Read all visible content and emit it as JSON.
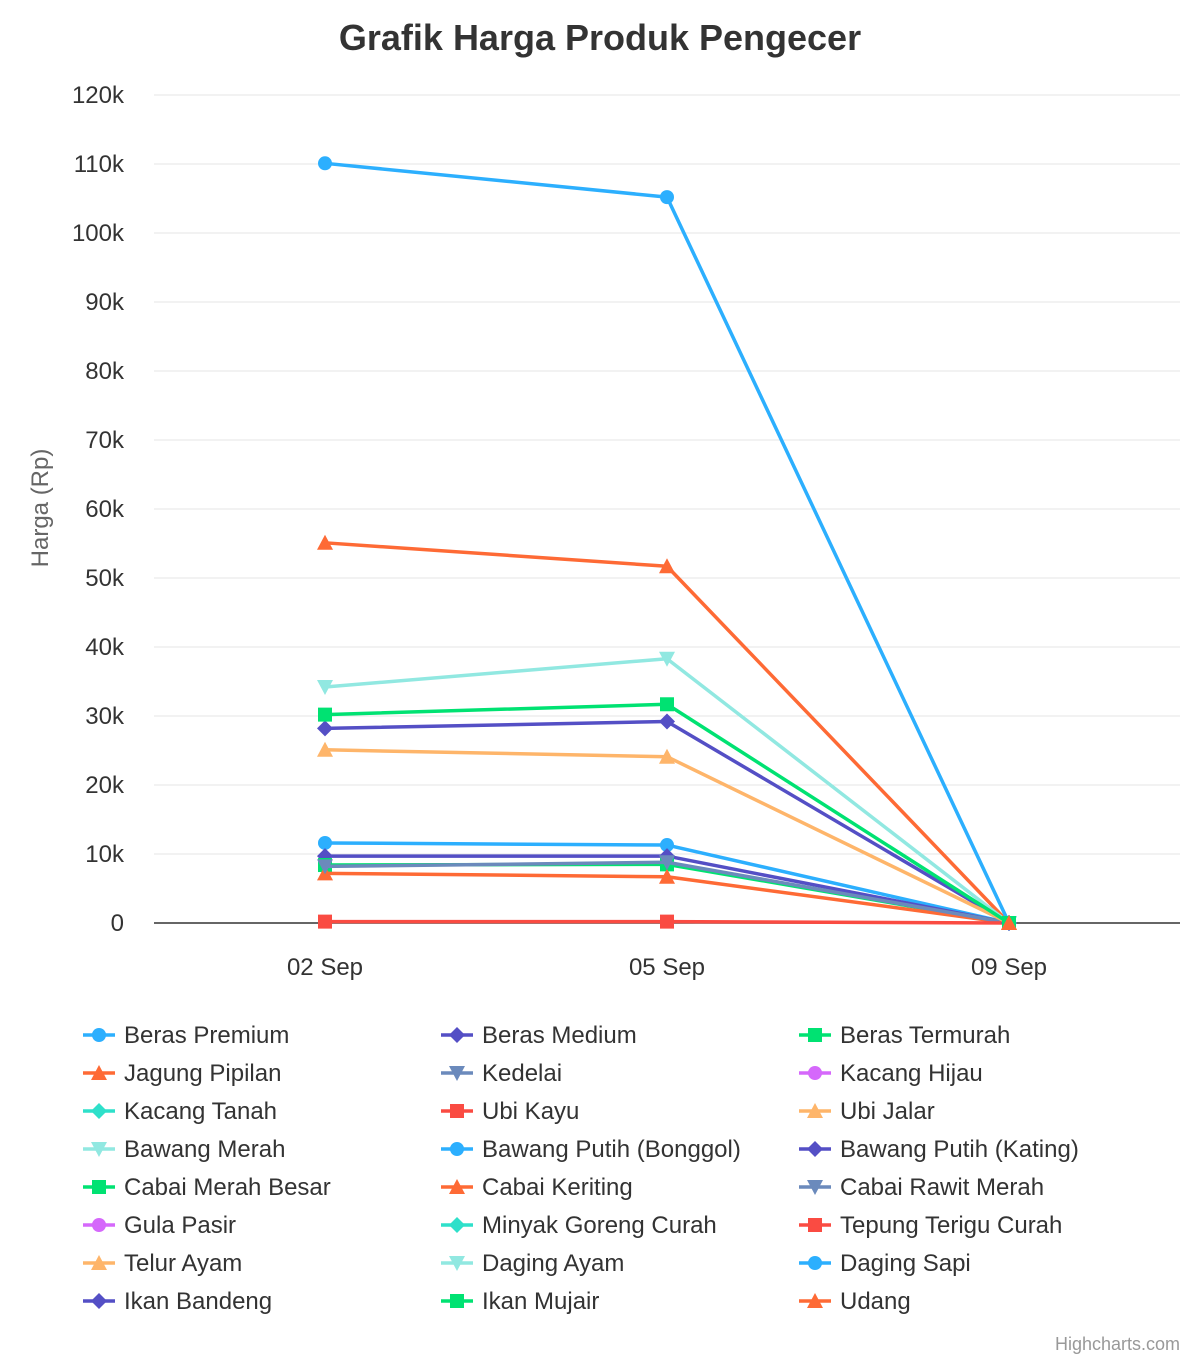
{
  "chart_data": {
    "type": "line",
    "title": "Grafik Harga Produk Pengecer",
    "ylabel": "Harga (Rp)",
    "xlabel": "",
    "categories": [
      "02 Sep",
      "05 Sep",
      "09 Sep"
    ],
    "ylim": [
      0,
      120000
    ],
    "yticks": [
      0,
      10000,
      20000,
      30000,
      40000,
      50000,
      60000,
      70000,
      80000,
      90000,
      100000,
      110000,
      120000
    ],
    "ytick_labels": [
      "0",
      "10k",
      "20k",
      "30k",
      "40k",
      "50k",
      "60k",
      "70k",
      "80k",
      "90k",
      "100k",
      "110k",
      "120k"
    ],
    "grid": true,
    "legend_position": "bottom",
    "credits": "Highcharts.com",
    "series": [
      {
        "name": "Beras Premium",
        "color": "#2caffe",
        "marker": "circle",
        "values": [
          11600,
          11300,
          0
        ]
      },
      {
        "name": "Beras Medium",
        "color": "#544fc5",
        "marker": "diamond",
        "values": [
          9700,
          9700,
          0
        ]
      },
      {
        "name": "Beras Termurah",
        "color": "#00e272",
        "marker": "square",
        "values": [
          8400,
          8500,
          0
        ]
      },
      {
        "name": "Jagung Pipilan",
        "color": "#fe6a35",
        "marker": "triangle",
        "values": [
          7200,
          6700,
          0
        ]
      },
      {
        "name": "Kedelai",
        "color": "#6b8abc",
        "marker": "triangle-down",
        "values": [
          8200,
          8800,
          0
        ]
      },
      {
        "name": "Kacang Hijau",
        "color": "#d568fb",
        "marker": "circle",
        "values": [
          null,
          null,
          0
        ]
      },
      {
        "name": "Kacang Tanah",
        "color": "#2ee0ca",
        "marker": "diamond",
        "values": [
          null,
          null,
          0
        ]
      },
      {
        "name": "Ubi Kayu",
        "color": "#fa4b42",
        "marker": "square",
        "values": [
          200,
          200,
          0
        ]
      },
      {
        "name": "Ubi Jalar",
        "color": "#feb56a",
        "marker": "triangle",
        "values": [
          null,
          null,
          0
        ]
      },
      {
        "name": "Bawang Merah",
        "color": "#91e8e1",
        "marker": "triangle-down",
        "values": [
          null,
          null,
          0
        ]
      },
      {
        "name": "Bawang Putih (Bonggol)",
        "color": "#2caffe",
        "marker": "circle",
        "values": [
          null,
          null,
          0
        ]
      },
      {
        "name": "Bawang Putih (Kating)",
        "color": "#544fc5",
        "marker": "diamond",
        "values": [
          28200,
          29200,
          0
        ]
      },
      {
        "name": "Cabai Merah Besar",
        "color": "#00e272",
        "marker": "square",
        "values": [
          null,
          null,
          0
        ]
      },
      {
        "name": "Cabai Keriting",
        "color": "#fe6a35",
        "marker": "triangle",
        "values": [
          55100,
          51700,
          0
        ]
      },
      {
        "name": "Cabai Rawit Merah",
        "color": "#6b8abc",
        "marker": "triangle-down",
        "values": [
          null,
          null,
          0
        ]
      },
      {
        "name": "Gula Pasir",
        "color": "#d568fb",
        "marker": "circle",
        "values": [
          null,
          null,
          0
        ]
      },
      {
        "name": "Minyak Goreng Curah",
        "color": "#2ee0ca",
        "marker": "diamond",
        "values": [
          null,
          null,
          0
        ]
      },
      {
        "name": "Tepung Terigu Curah",
        "color": "#fa4b42",
        "marker": "square",
        "values": [
          null,
          null,
          0
        ]
      },
      {
        "name": "Telur Ayam",
        "color": "#feb56a",
        "marker": "triangle",
        "values": [
          25100,
          24100,
          0
        ]
      },
      {
        "name": "Daging Ayam",
        "color": "#91e8e1",
        "marker": "triangle-down",
        "values": [
          34200,
          38300,
          0
        ]
      },
      {
        "name": "Daging Sapi",
        "color": "#2caffe",
        "marker": "circle",
        "values": [
          110100,
          105200,
          0
        ]
      },
      {
        "name": "Ikan Bandeng",
        "color": "#544fc5",
        "marker": "diamond",
        "values": [
          null,
          null,
          0
        ]
      },
      {
        "name": "Ikan Mujair",
        "color": "#00e272",
        "marker": "square",
        "values": [
          30200,
          31700,
          0
        ]
      },
      {
        "name": "Udang",
        "color": "#fe6a35",
        "marker": "triangle",
        "values": [
          null,
          null,
          0
        ]
      }
    ]
  }
}
